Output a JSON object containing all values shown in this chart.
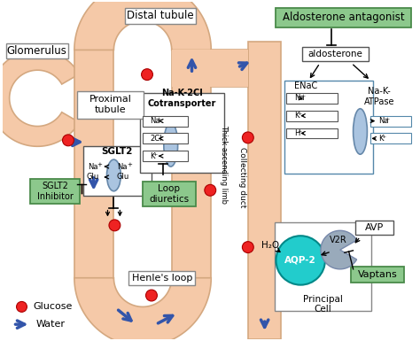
{
  "background": "#ffffff",
  "tubule_color": "#f5c9a8",
  "tubule_edge": "#d4a880",
  "drug_box_color": "#8cc88c",
  "drug_box_edge": "#4a8a4a",
  "ellipse_color": "#aac4e0",
  "ellipse_edge": "#6688aa",
  "arrow_blue": "#3355aa",
  "aqp2_color": "#22cccc",
  "v2r_color": "#99aabb",
  "glucose_color": "#ee2222",
  "label_glomerulus": "Glomerulus",
  "label_proximal": "Proximal\ntubule",
  "label_distal": "Distal tubule",
  "label_henle": "Henle's loop",
  "label_collecting": "Collecting duct",
  "label_thick": "Thick ascending limb",
  "label_sglt2": "SGLT2",
  "label_sglt2_inhibitor": "SGLT2\nInhibitor",
  "label_nk2cl": "Na-K-2Cl\nCotransporter",
  "label_loop": "Loop\ndiuretics",
  "label_aldosterone_ant": "Aldosterone antagonist",
  "label_aldosterone": "aldosterone",
  "label_enac": "ENaC",
  "label_natpase": "Na-K-\nATPase",
  "label_aqp2": "AQP-2",
  "label_v2r": "V2R",
  "label_avp": "AVP",
  "label_vaptans": "Vaptans",
  "label_principal": "Principal\nCell",
  "label_h2o": "H₂O",
  "legend_glucose": "Glucose",
  "legend_water": "Water"
}
